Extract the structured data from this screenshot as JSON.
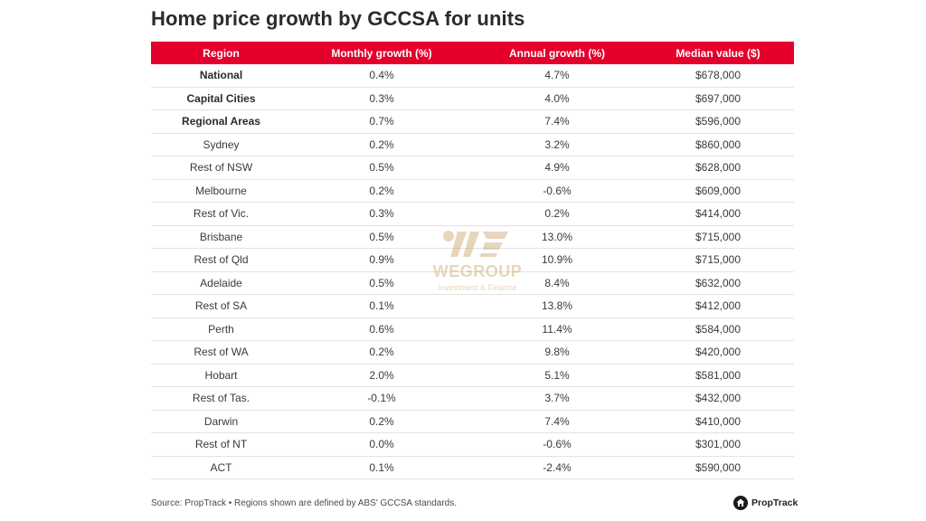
{
  "title": "Home price growth by GCCSA for units",
  "chart_data": {
    "type": "table",
    "title": "Home price growth by GCCSA for units",
    "columns": [
      "Region",
      "Monthly growth (%)",
      "Annual growth (%)",
      "Median value ($)"
    ],
    "rows": [
      {
        "region": "National",
        "monthly": "0.4%",
        "annual": "4.7%",
        "median": "$678,000",
        "bold": true
      },
      {
        "region": "Capital Cities",
        "monthly": "0.3%",
        "annual": "4.0%",
        "median": "$697,000",
        "bold": true
      },
      {
        "region": "Regional Areas",
        "monthly": "0.7%",
        "annual": "7.4%",
        "median": "$596,000",
        "bold": true
      },
      {
        "region": "Sydney",
        "monthly": "0.2%",
        "annual": "3.2%",
        "median": "$860,000",
        "bold": false
      },
      {
        "region": "Rest of NSW",
        "monthly": "0.5%",
        "annual": "4.9%",
        "median": "$628,000",
        "bold": false
      },
      {
        "region": "Melbourne",
        "monthly": "0.2%",
        "annual": "-0.6%",
        "median": "$609,000",
        "bold": false
      },
      {
        "region": "Rest of Vic.",
        "monthly": "0.3%",
        "annual": "0.2%",
        "median": "$414,000",
        "bold": false
      },
      {
        "region": "Brisbane",
        "monthly": "0.5%",
        "annual": "13.0%",
        "median": "$715,000",
        "bold": false
      },
      {
        "region": "Rest of Qld",
        "monthly": "0.9%",
        "annual": "10.9%",
        "median": "$715,000",
        "bold": false
      },
      {
        "region": "Adelaide",
        "monthly": "0.5%",
        "annual": "8.4%",
        "median": "$632,000",
        "bold": false
      },
      {
        "region": "Rest of SA",
        "monthly": "0.1%",
        "annual": "13.8%",
        "median": "$412,000",
        "bold": false
      },
      {
        "region": "Perth",
        "monthly": "0.6%",
        "annual": "11.4%",
        "median": "$584,000",
        "bold": false
      },
      {
        "region": "Rest of WA",
        "monthly": "0.2%",
        "annual": "9.8%",
        "median": "$420,000",
        "bold": false
      },
      {
        "region": "Hobart",
        "monthly": "2.0%",
        "annual": "5.1%",
        "median": "$581,000",
        "bold": false
      },
      {
        "region": "Rest of Tas.",
        "monthly": "-0.1%",
        "annual": "3.7%",
        "median": "$432,000",
        "bold": false
      },
      {
        "region": "Darwin",
        "monthly": "0.2%",
        "annual": "7.4%",
        "median": "$410,000",
        "bold": false
      },
      {
        "region": "Rest of NT",
        "monthly": "0.0%",
        "annual": "-0.6%",
        "median": "$301,000",
        "bold": false
      },
      {
        "region": "ACT",
        "monthly": "0.1%",
        "annual": "-2.4%",
        "median": "$590,000",
        "bold": false
      }
    ]
  },
  "header_color": "#e4002b",
  "footer": {
    "source": "Source: PropTrack • Regions shown are defined by ABS' GCCSA standards."
  },
  "logo": {
    "text": "PropTrack",
    "icon": "proptrack-house-icon"
  },
  "watermark": {
    "name": "WEGROUP",
    "tagline": "Investment & Finance"
  }
}
